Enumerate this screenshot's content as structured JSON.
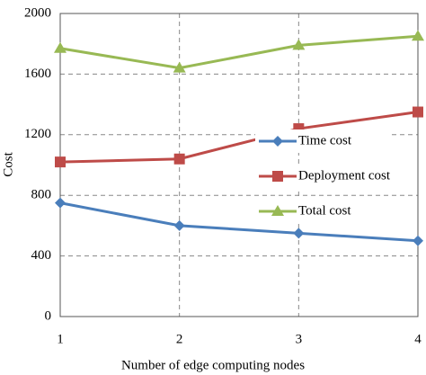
{
  "chart_data": {
    "type": "line",
    "x_label": "Number of edge computing nodes",
    "y_label": "Cost",
    "x": [
      1,
      2,
      3,
      4
    ],
    "xlim": [
      1,
      4
    ],
    "xticks": [
      1,
      2,
      3,
      4
    ],
    "ylim": [
      0,
      2000
    ],
    "yticks": [
      0,
      400,
      800,
      1200,
      1600,
      2000
    ],
    "grid": true,
    "legend": "center right",
    "series": [
      {
        "name": "Time cost",
        "color": "#4a7ebb",
        "marker": "diamond",
        "values": [
          750,
          600,
          550,
          500
        ]
      },
      {
        "name": "Deployment cost",
        "color": "#be4b48",
        "marker": "square",
        "values": [
          1020,
          1040,
          1240,
          1350
        ]
      },
      {
        "name": "Total cost",
        "color": "#98b954",
        "marker": "triangle",
        "values": [
          1770,
          1640,
          1790,
          1850
        ]
      }
    ]
  }
}
